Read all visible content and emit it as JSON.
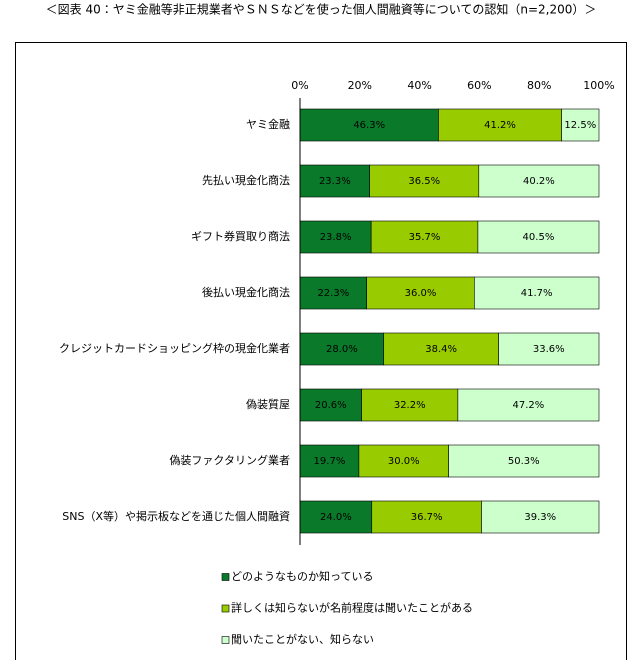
{
  "chart_data": {
    "type": "stacked-bar-horizontal",
    "title": "＜図表 40：ヤミ金融等非正規業者やＳＮＳなどを使った個人間融資等についての認知（n=2,200）＞",
    "categories": [
      "ヤミ金融",
      "先払い現金化商法",
      "ギフト券買取り商法",
      "後払い現金化商法",
      "クレジットカードショッピング枠の現金化業者",
      "偽装質屋",
      "偽装ファクタリング業者",
      "SNS（X等）や掲示板などを通じた個人間融資"
    ],
    "series": [
      {
        "name": "どのようなものか知っている",
        "color": "#0a7a2a",
        "values": [
          46.3,
          23.3,
          23.8,
          22.3,
          28.0,
          20.6,
          19.7,
          24.0
        ],
        "value_labels": [
          "46.3%",
          "23.3%",
          "23.8%",
          "22.3%",
          "28.0%",
          "20.6%",
          "19.7%",
          "24.0%"
        ]
      },
      {
        "name": "詳しくは知らないが名前程度は聞いたことがある",
        "color": "#99cc00",
        "values": [
          41.2,
          36.5,
          35.7,
          36.0,
          38.4,
          32.2,
          30.0,
          36.7
        ],
        "value_labels": [
          "41.2%",
          "36.5%",
          "35.7%",
          "36.0%",
          "38.4%",
          "32.2%",
          "30.0%",
          "36.7%"
        ]
      },
      {
        "name": "聞いたことがない、知らない",
        "color": "#ccffcc",
        "values": [
          12.5,
          40.2,
          40.5,
          41.7,
          33.6,
          47.2,
          50.3,
          39.3
        ],
        "value_labels": [
          "12.5%",
          "40.2%",
          "40.5%",
          "41.7%",
          "33.6%",
          "47.2%",
          "50.3%",
          "39.3%"
        ]
      }
    ],
    "xlim": [
      0,
      100
    ],
    "xticks": [
      {
        "value": 0,
        "label": "0%"
      },
      {
        "value": 20,
        "label": "20%"
      },
      {
        "value": 40,
        "label": "40%"
      },
      {
        "value": 60,
        "label": "60%"
      },
      {
        "value": 80,
        "label": "80%"
      },
      {
        "value": 100,
        "label": "100%"
      }
    ]
  }
}
